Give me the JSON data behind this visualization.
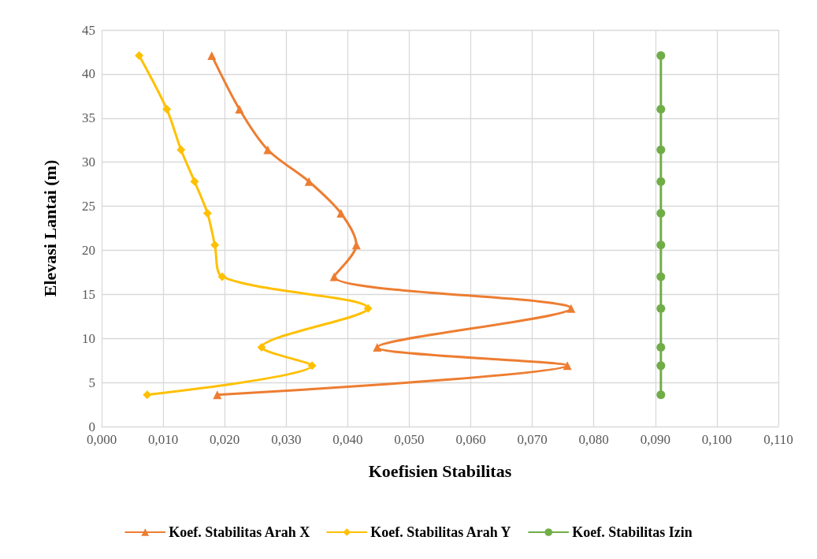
{
  "chart_data": {
    "type": "line",
    "xlabel": "Koefisien Stabilitas",
    "ylabel": "Elevasi Lantai (m)",
    "xlim": [
      0,
      0.11
    ],
    "xticks": [
      {
        "value": 0,
        "label": "0,000"
      },
      {
        "value": 0.01,
        "label": "0,010"
      },
      {
        "value": 0.02,
        "label": "0,020"
      },
      {
        "value": 0.03,
        "label": "0,030"
      },
      {
        "value": 0.04,
        "label": "0,040"
      },
      {
        "value": 0.05,
        "label": "0,050"
      },
      {
        "value": 0.06,
        "label": "0,060"
      },
      {
        "value": 0.07,
        "label": "0,070"
      },
      {
        "value": 0.08,
        "label": "0,080"
      },
      {
        "value": 0.09,
        "label": "0,090"
      },
      {
        "value": 0.1,
        "label": "0,100"
      },
      {
        "value": 0.11,
        "label": "0,110"
      }
    ],
    "ylim": [
      0,
      45
    ],
    "yticks": [
      0,
      5,
      10,
      15,
      20,
      25,
      30,
      35,
      40,
      45
    ],
    "grid": true,
    "legend": "bottom",
    "line_style": "solid",
    "series": [
      {
        "name": "Koef. Stabilitas Arah X",
        "color": "#ed7d31",
        "marker": "triangle",
        "x": [
          0.0188,
          0.0757,
          0.0448,
          0.0763,
          0.0378,
          0.0414,
          0.0389,
          0.0337,
          0.027,
          0.0224,
          0.0179
        ],
        "values": [
          3.6,
          6.9,
          9.0,
          13.4,
          17.0,
          20.6,
          24.2,
          27.8,
          31.4,
          36.0,
          42.1
        ]
      },
      {
        "name": "Koef. Stabilitas Arah Y",
        "color": "#ffc000",
        "marker": "diamond",
        "x": [
          0.0074,
          0.0342,
          0.026,
          0.0433,
          0.0196,
          0.0184,
          0.0172,
          0.0151,
          0.0129,
          0.0106,
          0.0061
        ],
        "values": [
          3.6,
          6.9,
          9.0,
          13.4,
          17.0,
          20.6,
          24.2,
          27.8,
          31.4,
          36.0,
          42.1
        ]
      },
      {
        "name": "Koef. Stabilitas Izin",
        "color": "#70ad47",
        "marker": "circle",
        "x": [
          0.0909,
          0.0909,
          0.0909,
          0.0909,
          0.0909,
          0.0909,
          0.0909,
          0.0909,
          0.0909,
          0.0909,
          0.0909
        ],
        "values": [
          3.6,
          6.9,
          9.0,
          13.4,
          17.0,
          20.6,
          24.2,
          27.8,
          31.4,
          36.0,
          42.1
        ]
      }
    ]
  }
}
